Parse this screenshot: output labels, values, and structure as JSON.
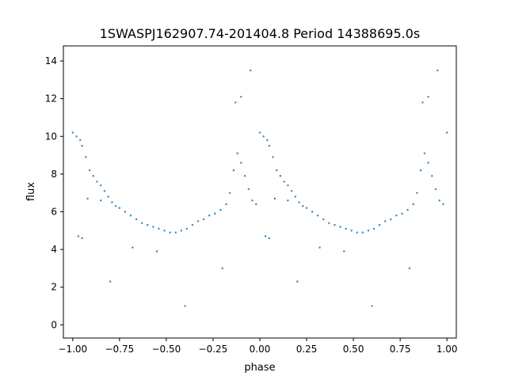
{
  "chart_data": {
    "type": "scatter",
    "title": "1SWASPJ162907.74-201404.8 Period 14388695.0s",
    "xlabel": "phase",
    "ylabel": "flux",
    "xlim": [
      -1.05,
      1.05
    ],
    "ylim": [
      -0.7,
      14.8
    ],
    "xticks": [
      -1.0,
      -0.75,
      -0.5,
      -0.25,
      0.0,
      0.25,
      0.5,
      0.75,
      1.0
    ],
    "xtick_labels": [
      "−1.00",
      "−0.75",
      "−0.50",
      "−0.25",
      "0.00",
      "0.25",
      "0.50",
      "0.75",
      "1.00"
    ],
    "yticks": [
      0,
      2,
      4,
      6,
      8,
      10,
      12,
      14
    ],
    "ytick_labels": [
      "0",
      "2",
      "4",
      "6",
      "8",
      "10",
      "12",
      "14"
    ],
    "grid": false,
    "marker_color": "#1f77b4",
    "series": [
      {
        "points": [
          [
            -1.0,
            10.2
          ],
          [
            -0.98,
            10.0
          ],
          [
            -0.96,
            9.8
          ],
          [
            -0.95,
            9.5
          ],
          [
            -0.93,
            8.9
          ],
          [
            -0.91,
            8.2
          ],
          [
            -0.89,
            7.9
          ],
          [
            -0.87,
            7.6
          ],
          [
            -0.85,
            7.4
          ],
          [
            -0.83,
            7.1
          ],
          [
            -0.81,
            6.8
          ],
          [
            -0.79,
            6.5
          ],
          [
            -0.77,
            6.3
          ],
          [
            -0.75,
            6.2
          ],
          [
            -0.72,
            6.0
          ],
          [
            -0.69,
            5.8
          ],
          [
            -0.66,
            5.6
          ],
          [
            -0.63,
            5.4
          ],
          [
            -0.6,
            5.3
          ],
          [
            -0.57,
            5.2
          ],
          [
            -0.54,
            5.1
          ],
          [
            -0.51,
            5.0
          ],
          [
            -0.48,
            4.9
          ],
          [
            -0.45,
            4.9
          ],
          [
            -0.42,
            5.0
          ],
          [
            -0.39,
            5.1
          ],
          [
            -0.36,
            5.3
          ],
          [
            -0.33,
            5.5
          ],
          [
            -0.3,
            5.6
          ],
          [
            -0.27,
            5.8
          ],
          [
            -0.24,
            5.9
          ],
          [
            -0.21,
            6.1
          ],
          [
            -0.18,
            6.4
          ],
          [
            -0.16,
            7.0
          ],
          [
            -0.14,
            8.2
          ],
          [
            -0.12,
            9.1
          ],
          [
            -0.1,
            8.6
          ],
          [
            -0.08,
            7.9
          ],
          [
            -0.06,
            7.2
          ],
          [
            -0.04,
            6.6
          ],
          [
            -0.02,
            6.4
          ],
          [
            0.0,
            10.2
          ],
          [
            0.02,
            10.0
          ],
          [
            0.04,
            9.8
          ],
          [
            0.05,
            9.5
          ],
          [
            0.07,
            8.9
          ],
          [
            0.09,
            8.2
          ],
          [
            0.11,
            7.9
          ],
          [
            0.13,
            7.6
          ],
          [
            0.15,
            7.4
          ],
          [
            0.17,
            7.1
          ],
          [
            0.19,
            6.8
          ],
          [
            0.21,
            6.5
          ],
          [
            0.23,
            6.3
          ],
          [
            0.25,
            6.2
          ],
          [
            0.28,
            6.0
          ],
          [
            0.31,
            5.8
          ],
          [
            0.34,
            5.6
          ],
          [
            0.37,
            5.4
          ],
          [
            0.4,
            5.3
          ],
          [
            0.43,
            5.2
          ],
          [
            0.46,
            5.1
          ],
          [
            0.49,
            5.0
          ],
          [
            0.52,
            4.9
          ],
          [
            0.55,
            4.9
          ],
          [
            0.58,
            5.0
          ],
          [
            0.61,
            5.1
          ],
          [
            0.64,
            5.3
          ],
          [
            0.67,
            5.5
          ],
          [
            0.7,
            5.6
          ],
          [
            0.73,
            5.8
          ],
          [
            0.76,
            5.9
          ],
          [
            0.79,
            6.1
          ],
          [
            0.82,
            6.4
          ],
          [
            0.84,
            7.0
          ],
          [
            0.86,
            8.2
          ],
          [
            0.88,
            9.1
          ],
          [
            0.9,
            8.6
          ],
          [
            0.92,
            7.9
          ],
          [
            0.94,
            7.2
          ],
          [
            0.96,
            6.6
          ],
          [
            0.98,
            6.4
          ],
          [
            1.0,
            10.2
          ],
          [
            -0.97,
            4.7
          ],
          [
            -0.95,
            4.6
          ],
          [
            0.03,
            4.7
          ],
          [
            0.05,
            4.6
          ],
          [
            -0.92,
            6.7
          ],
          [
            -0.85,
            6.6
          ],
          [
            0.08,
            6.7
          ],
          [
            0.15,
            6.6
          ],
          [
            -0.68,
            4.1
          ],
          [
            0.32,
            4.1
          ],
          [
            -0.55,
            3.9
          ],
          [
            0.45,
            3.9
          ],
          [
            -0.13,
            11.8
          ],
          [
            -0.1,
            12.1
          ],
          [
            0.87,
            11.8
          ],
          [
            0.9,
            12.1
          ],
          [
            -0.05,
            13.5
          ],
          [
            0.95,
            13.5
          ],
          [
            -0.2,
            3.0
          ],
          [
            0.8,
            3.0
          ],
          [
            -0.4,
            1.0
          ],
          [
            0.6,
            1.0
          ],
          [
            -0.8,
            2.3
          ],
          [
            0.2,
            2.3
          ]
        ]
      }
    ]
  }
}
